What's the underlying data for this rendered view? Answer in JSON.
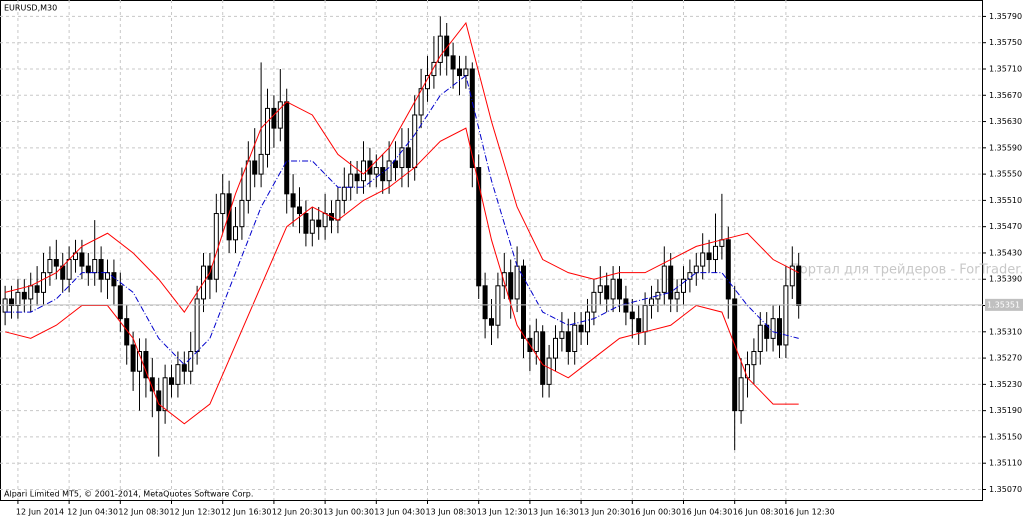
{
  "chart_data": {
    "type": "candlestick",
    "title": "EURUSD,M30",
    "footer": "Alpari Limited MT5, © 2001-2014, MetaQuotes Software Corp.",
    "watermark": "Портал для трейдеров - ForTrader.ru",
    "last_price": 1.35351,
    "xlim": [
      -0.8,
      152.8
    ],
    "ylim": [
      1.35054,
      1.35815
    ],
    "grid": true,
    "bull_color": "#ffffff",
    "bear_color": "#000000",
    "wick_color": "#000000",
    "yticks": [
      {
        "value": 1.3579,
        "label": "1.35790"
      },
      {
        "value": 1.3575,
        "label": "1.35750"
      },
      {
        "value": 1.3571,
        "label": "1.35710"
      },
      {
        "value": 1.3567,
        "label": "1.35670"
      },
      {
        "value": 1.3563,
        "label": "1.35630"
      },
      {
        "value": 1.3559,
        "label": "1.35590"
      },
      {
        "value": 1.3555,
        "label": "1.35550"
      },
      {
        "value": 1.3551,
        "label": "1.35510"
      },
      {
        "value": 1.3547,
        "label": "1.35470"
      },
      {
        "value": 1.3543,
        "label": "1.35430"
      },
      {
        "value": 1.3539,
        "label": "1.35390"
      },
      {
        "value": 1.3535,
        "label": "1.35350"
      },
      {
        "value": 1.3531,
        "label": "1.35310"
      },
      {
        "value": 1.3527,
        "label": "1.35270"
      },
      {
        "value": 1.3523,
        "label": "1.35230"
      },
      {
        "value": 1.3519,
        "label": "1.35190"
      },
      {
        "value": 1.3515,
        "label": "1.35150"
      },
      {
        "value": 1.3511,
        "label": "1.35110"
      },
      {
        "value": 1.3507,
        "label": "1.35070"
      }
    ],
    "xticks": [
      {
        "value": 2,
        "label": "12 Jun 2014"
      },
      {
        "value": 10,
        "label": "12 Jun 04:30"
      },
      {
        "value": 18,
        "label": "12 Jun 08:30"
      },
      {
        "value": 26,
        "label": "12 Jun 12:30"
      },
      {
        "value": 34,
        "label": "12 Jun 16:30"
      },
      {
        "value": 42,
        "label": "12 Jun 20:30"
      },
      {
        "value": 50,
        "label": "13 Jun 00:30"
      },
      {
        "value": 58,
        "label": "13 Jun 04:30"
      },
      {
        "value": 66,
        "label": "13 Jun 08:30"
      },
      {
        "value": 74,
        "label": "13 Jun 12:30"
      },
      {
        "value": 82,
        "label": "13 Jun 16:30"
      },
      {
        "value": 90,
        "label": "13 Jun 20:30"
      },
      {
        "value": 98,
        "label": "16 Jun 00:30"
      },
      {
        "value": 106,
        "label": "16 Jun 04:30"
      },
      {
        "value": 114,
        "label": "16 Jun 08:30"
      },
      {
        "value": 122,
        "label": "16 Jun 12:30"
      }
    ],
    "open": [
      1.3534,
      1.3536,
      1.3535,
      1.3537,
      1.3536,
      1.3538,
      1.3537,
      1.354,
      1.3542,
      1.3541,
      1.3539,
      1.3542,
      1.3543,
      1.3541,
      1.354,
      1.3542,
      1.3539,
      1.354,
      1.3538,
      1.3533,
      1.3529,
      1.3525,
      1.3528,
      1.3524,
      1.3522,
      1.3519,
      1.3524,
      1.3523,
      1.3526,
      1.3525,
      1.3528,
      1.3536,
      1.3541,
      1.3539,
      1.3549,
      1.3552,
      1.3545,
      1.3547,
      1.3551,
      1.3557,
      1.3555,
      1.3558,
      1.3565,
      1.3562,
      1.3566,
      1.3552,
      1.355,
      1.3549,
      1.3546,
      1.3548,
      1.3547,
      1.3549,
      1.3548,
      1.3551,
      1.3553,
      1.3555,
      1.3554,
      1.3557,
      1.3555,
      1.3556,
      1.3554,
      1.3557,
      1.3556,
      1.3559,
      1.3556,
      1.3564,
      1.3568,
      1.357,
      1.3572,
      1.3576,
      1.3573,
      1.3571,
      1.357,
      1.3571,
      1.3556,
      1.3538,
      1.3533,
      1.3532,
      1.3538,
      1.354,
      1.3536,
      1.3541,
      1.353,
      1.3528,
      1.3531,
      1.3523,
      1.3527,
      1.353,
      1.3531,
      1.3528,
      1.3532,
      1.3531,
      1.3534,
      1.3537,
      1.3538,
      1.3536,
      1.3539,
      1.3536,
      1.3534,
      1.3533,
      1.3531,
      1.3535,
      1.3536,
      1.3537,
      1.3541,
      1.3536,
      1.3537,
      1.3539,
      1.354,
      1.3541,
      1.3543,
      1.3542,
      1.3544,
      1.3545,
      1.3536,
      1.3519,
      1.3524,
      1.3526,
      1.3528,
      1.3532,
      1.353,
      1.3533,
      1.3529,
      1.3538,
      1.3541
    ],
    "high": [
      1.3538,
      1.3538,
      1.3539,
      1.3539,
      1.354,
      1.3541,
      1.3543,
      1.3544,
      1.3545,
      1.3543,
      1.3544,
      1.3545,
      1.3545,
      1.3543,
      1.3548,
      1.3544,
      1.3542,
      1.3542,
      1.354,
      1.3535,
      1.3531,
      1.353,
      1.353,
      1.3527,
      1.3524,
      1.3526,
      1.3526,
      1.3528,
      1.3528,
      1.3531,
      1.3538,
      1.3543,
      1.3543,
      1.3552,
      1.3555,
      1.3554,
      1.355,
      1.3556,
      1.356,
      1.3562,
      1.3572,
      1.3568,
      1.3567,
      1.3571,
      1.3568,
      1.3555,
      1.3553,
      1.3551,
      1.355,
      1.355,
      1.3552,
      1.3551,
      1.3553,
      1.3556,
      1.3557,
      1.3557,
      1.356,
      1.3559,
      1.3558,
      1.3558,
      1.356,
      1.356,
      1.3562,
      1.3562,
      1.3567,
      1.3571,
      1.3573,
      1.3576,
      1.3579,
      1.3578,
      1.3575,
      1.3573,
      1.3573,
      1.3572,
      1.3558,
      1.354,
      1.3536,
      1.354,
      1.3543,
      1.3542,
      1.3544,
      1.3542,
      1.3532,
      1.3533,
      1.3532,
      1.3529,
      1.3532,
      1.3534,
      1.3533,
      1.3534,
      1.3534,
      1.3536,
      1.3539,
      1.3541,
      1.354,
      1.3541,
      1.3541,
      1.3538,
      1.3536,
      1.3535,
      1.3537,
      1.3538,
      1.3539,
      1.3544,
      1.3543,
      1.3539,
      1.3541,
      1.3542,
      1.3543,
      1.3546,
      1.3545,
      1.3549,
      1.3552,
      1.3547,
      1.3538,
      1.3527,
      1.3528,
      1.353,
      1.3534,
      1.3534,
      1.3535,
      1.3535,
      1.3541,
      1.3544,
      1.3543
    ],
    "low": [
      1.3532,
      1.3533,
      1.3533,
      1.3534,
      1.3534,
      1.3535,
      1.3535,
      1.3538,
      1.3539,
      1.3537,
      1.3537,
      1.354,
      1.3539,
      1.3538,
      1.3538,
      1.3537,
      1.3536,
      1.3535,
      1.3531,
      1.3526,
      1.3522,
      1.3519,
      1.3521,
      1.3518,
      1.3512,
      1.3517,
      1.3521,
      1.3521,
      1.3523,
      1.3523,
      1.3526,
      1.3534,
      1.3536,
      1.3537,
      1.3546,
      1.3543,
      1.3543,
      1.3545,
      1.3549,
      1.3553,
      1.3553,
      1.3556,
      1.3559,
      1.356,
      1.3549,
      1.3547,
      1.3546,
      1.3544,
      1.3544,
      1.3545,
      1.3545,
      1.3546,
      1.3546,
      1.3549,
      1.3551,
      1.3552,
      1.3552,
      1.3553,
      1.3553,
      1.3552,
      1.3552,
      1.3554,
      1.3553,
      1.3553,
      1.3554,
      1.3562,
      1.3566,
      1.3568,
      1.357,
      1.357,
      1.3568,
      1.3567,
      1.3568,
      1.3553,
      1.3536,
      1.353,
      1.3529,
      1.353,
      1.3536,
      1.3533,
      1.3534,
      1.3527,
      1.3525,
      1.3526,
      1.3521,
      1.3521,
      1.3525,
      1.3528,
      1.3526,
      1.3526,
      1.3529,
      1.3529,
      1.3532,
      1.3535,
      1.3534,
      1.3534,
      1.3534,
      1.3532,
      1.353,
      1.3529,
      1.3529,
      1.3533,
      1.3534,
      1.3535,
      1.3534,
      1.3534,
      1.3535,
      1.3537,
      1.3538,
      1.3539,
      1.354,
      1.354,
      1.3542,
      1.3533,
      1.3513,
      1.3517,
      1.3521,
      1.3523,
      1.3526,
      1.3528,
      1.3528,
      1.3527,
      1.3527,
      1.3536,
      1.3533
    ],
    "close": [
      1.3536,
      1.3535,
      1.3537,
      1.3536,
      1.3538,
      1.3537,
      1.354,
      1.3542,
      1.3541,
      1.3539,
      1.3542,
      1.3543,
      1.3541,
      1.354,
      1.3542,
      1.3539,
      1.354,
      1.3538,
      1.3533,
      1.3529,
      1.3525,
      1.3528,
      1.3524,
      1.3522,
      1.3519,
      1.3524,
      1.3523,
      1.3526,
      1.3525,
      1.3528,
      1.3536,
      1.3541,
      1.3539,
      1.3549,
      1.3552,
      1.3545,
      1.3547,
      1.3551,
      1.3557,
      1.3555,
      1.3558,
      1.3565,
      1.3562,
      1.3566,
      1.3552,
      1.355,
      1.3549,
      1.3546,
      1.3548,
      1.3547,
      1.3549,
      1.3548,
      1.3551,
      1.3553,
      1.3555,
      1.3554,
      1.3557,
      1.3555,
      1.3556,
      1.3554,
      1.3557,
      1.3556,
      1.3559,
      1.3556,
      1.3564,
      1.3568,
      1.357,
      1.3572,
      1.3576,
      1.3573,
      1.3571,
      1.357,
      1.3571,
      1.3556,
      1.3538,
      1.3533,
      1.3532,
      1.3538,
      1.354,
      1.3536,
      1.3541,
      1.353,
      1.3528,
      1.3531,
      1.3523,
      1.3527,
      1.353,
      1.3531,
      1.3528,
      1.3532,
      1.3531,
      1.3534,
      1.3537,
      1.3538,
      1.3536,
      1.3539,
      1.3536,
      1.3534,
      1.3533,
      1.3531,
      1.3535,
      1.3536,
      1.3537,
      1.3541,
      1.3536,
      1.3537,
      1.3539,
      1.354,
      1.3541,
      1.3543,
      1.3542,
      1.3544,
      1.3545,
      1.3536,
      1.3519,
      1.3524,
      1.3526,
      1.3528,
      1.3532,
      1.353,
      1.3533,
      1.3529,
      1.3538,
      1.3541,
      1.3535
    ],
    "bands": [
      {
        "color": "#ff0000",
        "dash": false,
        "x": [
          0,
          4,
          8,
          12,
          16,
          20,
          24,
          28,
          32,
          36,
          40,
          44,
          48,
          52,
          56,
          60,
          64,
          68,
          72,
          76,
          80,
          84,
          88,
          92,
          96,
          100,
          104,
          108,
          112,
          116,
          120,
          124
        ],
        "values": [
          1.3537,
          1.3538,
          1.354,
          1.3544,
          1.3546,
          1.3543,
          1.3539,
          1.3534,
          1.354,
          1.3552,
          1.3562,
          1.3566,
          1.3564,
          1.3558,
          1.3555,
          1.3559,
          1.3566,
          1.3573,
          1.3578,
          1.3563,
          1.355,
          1.3542,
          1.354,
          1.3539,
          1.354,
          1.354,
          1.3542,
          1.3544,
          1.3545,
          1.3546,
          1.3542,
          1.354
        ]
      },
      {
        "color": "#0000cc",
        "dash": true,
        "x": [
          0,
          4,
          8,
          12,
          16,
          20,
          24,
          28,
          32,
          36,
          40,
          44,
          48,
          52,
          56,
          60,
          64,
          68,
          72,
          76,
          80,
          84,
          88,
          92,
          96,
          100,
          104,
          108,
          112,
          116,
          120,
          124
        ],
        "values": [
          1.3534,
          1.3534,
          1.3536,
          1.354,
          1.354,
          1.3537,
          1.353,
          1.3526,
          1.353,
          1.354,
          1.355,
          1.3557,
          1.3557,
          1.3553,
          1.3553,
          1.3556,
          1.3561,
          1.3567,
          1.357,
          1.3554,
          1.3541,
          1.3534,
          1.3532,
          1.3533,
          1.3535,
          1.3536,
          1.3537,
          1.354,
          1.354,
          1.3535,
          1.3531,
          1.353
        ]
      },
      {
        "color": "#ff0000",
        "dash": false,
        "x": [
          0,
          4,
          8,
          12,
          16,
          20,
          24,
          28,
          32,
          36,
          40,
          44,
          48,
          52,
          56,
          60,
          64,
          68,
          72,
          76,
          80,
          84,
          88,
          92,
          96,
          100,
          104,
          108,
          112,
          116,
          120,
          124
        ],
        "values": [
          1.3531,
          1.353,
          1.3532,
          1.3535,
          1.3535,
          1.353,
          1.352,
          1.3517,
          1.352,
          1.3529,
          1.3538,
          1.3547,
          1.355,
          1.3548,
          1.3551,
          1.3553,
          1.3556,
          1.356,
          1.3562,
          1.3545,
          1.3532,
          1.3526,
          1.3524,
          1.3527,
          1.353,
          1.3531,
          1.3532,
          1.3535,
          1.3534,
          1.3524,
          1.352,
          1.352
        ]
      }
    ]
  }
}
